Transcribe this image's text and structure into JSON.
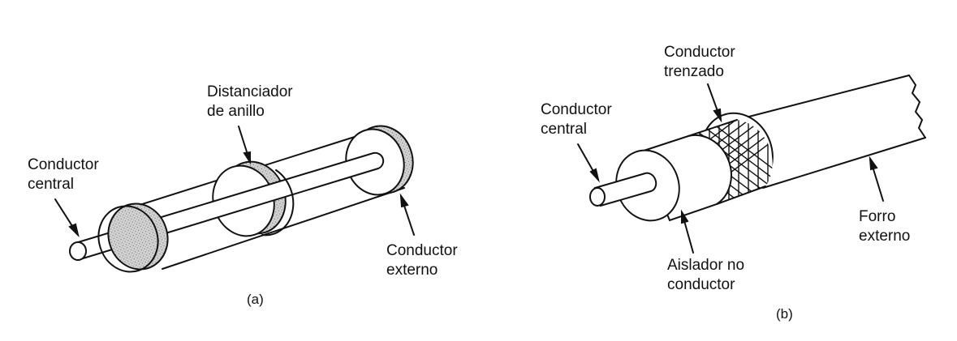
{
  "panel_a": {
    "caption": "(a)",
    "labels": {
      "central_conductor": [
        "Conductor",
        "central"
      ],
      "ring_spacer": [
        "Distanciador",
        "de anillo"
      ],
      "outer_conductor": [
        "Conductor",
        "externo"
      ]
    }
  },
  "panel_b": {
    "caption": "(b)",
    "labels": {
      "central_conductor": [
        "Conductor",
        "central"
      ],
      "braided_conductor": [
        "Conductor",
        "trenzado"
      ],
      "insulator": [
        "Aislador no",
        "conductor"
      ],
      "outer_jacket": [
        "Forro",
        "externo"
      ]
    }
  }
}
